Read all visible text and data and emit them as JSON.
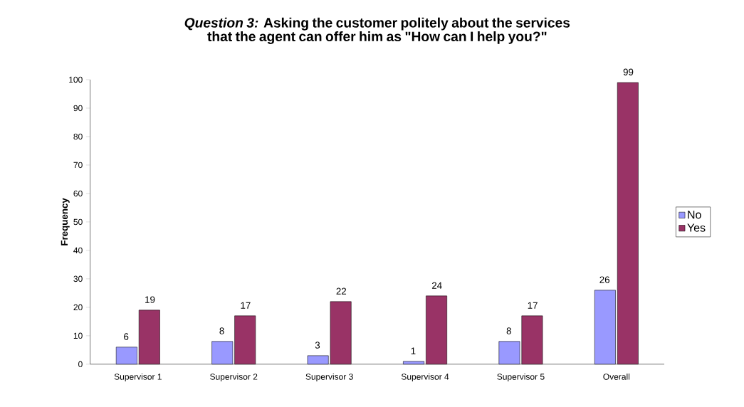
{
  "chart_data": {
    "type": "bar",
    "title": "*Question 3:* Asking the customer politely about the services that the agent can offer him as \"How can I help you?\"",
    "ylabel": "Frequency",
    "categories": [
      "Supervisor 1",
      "Supervisor 2",
      "Supervisor 3",
      "Supervisor 4",
      "Supervisor 5",
      "Overall"
    ],
    "series": [
      {
        "name": "No",
        "color": "#9999ff",
        "values": [
          6,
          8,
          3,
          1,
          8,
          26
        ]
      },
      {
        "name": "Yes",
        "color": "#993366",
        "values": [
          19,
          17,
          22,
          24,
          17,
          99
        ]
      }
    ],
    "ylim": [
      0,
      100
    ],
    "yticks": [
      0,
      10,
      20,
      30,
      40,
      50,
      60,
      70,
      80,
      90,
      100
    ],
    "data_labels": true,
    "legend": "right",
    "grid": false
  }
}
